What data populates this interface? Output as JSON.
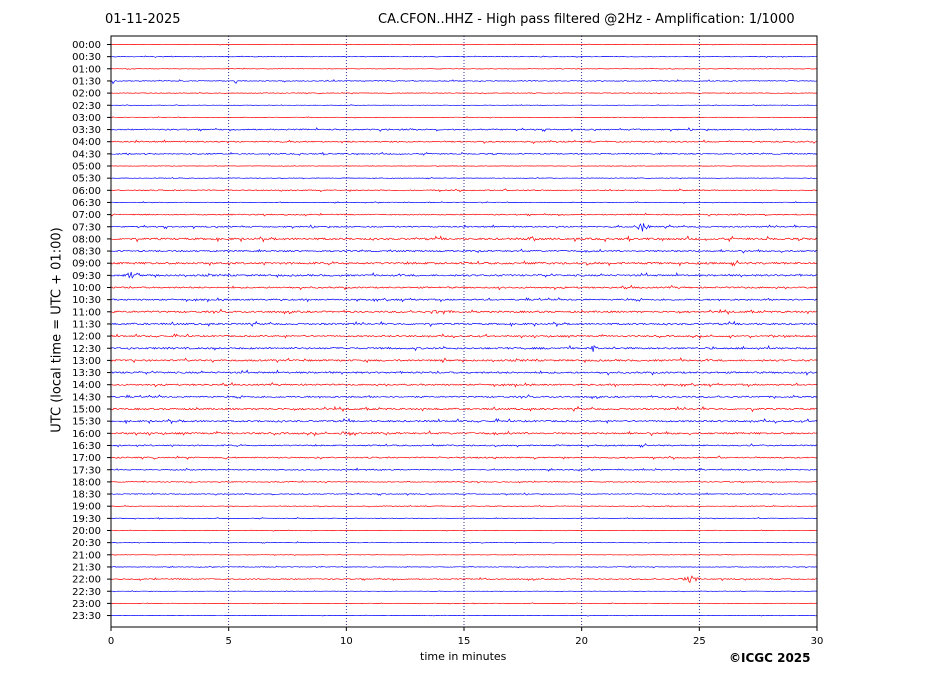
{
  "header": {
    "date": "01-11-2025",
    "title": "CA.CFON..HHZ - High pass filtered @2Hz - Amplification: 1/1000"
  },
  "footer": {
    "xlabel": "time in minutes",
    "copyright": "©ICGC 2025"
  },
  "chart_data": {
    "type": "line",
    "title": "CA.CFON..HHZ - High pass filtered @2Hz - Amplification: 1/1000",
    "xlabel": "time in minutes",
    "ylabel": "UTC (local time = UTC + 01:00)",
    "xlim": [
      0,
      30
    ],
    "x_ticks": [
      0,
      5,
      10,
      15,
      20,
      25,
      30
    ],
    "vertical_gridlines": [
      5,
      10,
      15,
      20,
      25
    ],
    "grid": "vertical dotted",
    "series_colors": [
      "#ff0000",
      "#0000ff"
    ],
    "rows": [
      "00:00",
      "00:30",
      "01:00",
      "01:30",
      "02:00",
      "02:30",
      "03:00",
      "03:30",
      "04:00",
      "04:30",
      "05:00",
      "05:30",
      "06:00",
      "06:30",
      "07:00",
      "07:30",
      "08:00",
      "08:30",
      "09:00",
      "09:30",
      "10:00",
      "10:30",
      "11:00",
      "11:30",
      "12:00",
      "12:30",
      "13:00",
      "13:30",
      "14:00",
      "14:30",
      "15:00",
      "15:30",
      "16:00",
      "16:30",
      "17:00",
      "17:30",
      "18:00",
      "18:30",
      "19:00",
      "19:30",
      "20:00",
      "20:30",
      "21:00",
      "21:30",
      "22:00",
      "22:30",
      "23:00",
      "23:30"
    ],
    "row_noise": [
      0.2,
      0.25,
      0.25,
      0.4,
      0.3,
      0.2,
      0.25,
      0.6,
      0.6,
      0.5,
      0.2,
      0.25,
      0.5,
      0.3,
      0.5,
      0.6,
      0.9,
      0.7,
      0.9,
      0.8,
      0.7,
      0.7,
      0.8,
      0.8,
      0.7,
      0.8,
      0.8,
      0.8,
      0.7,
      0.7,
      0.8,
      0.8,
      0.8,
      0.6,
      0.6,
      0.5,
      0.4,
      0.4,
      0.3,
      0.3,
      0.25,
      0.2,
      0.2,
      0.3,
      0.5,
      0.2,
      0.2,
      0.2
    ],
    "events": [
      {
        "row": "07:30",
        "minute": 22.6,
        "amplitude": 5,
        "width": 0.5
      },
      {
        "row": "09:30",
        "minute": 0.9,
        "amplitude": 4,
        "width": 0.4
      },
      {
        "row": "12:30",
        "minute": 20.5,
        "amplitude": 3,
        "width": 0.3
      },
      {
        "row": "01:30",
        "minute": 0.1,
        "amplitude": 4,
        "width": 0.05
      },
      {
        "row": "01:30",
        "minute": 5.3,
        "amplitude": 4,
        "width": 0.05
      },
      {
        "row": "20:30",
        "minute": 7.9,
        "amplitude": 4,
        "width": 0.05
      },
      {
        "row": "22:00",
        "minute": 24.6,
        "amplitude": 4,
        "width": 0.5
      },
      {
        "row": "22:00",
        "minute": 15.9,
        "amplitude": 3,
        "width": 0.05
      },
      {
        "row": "11:00",
        "minute": 14.0,
        "amplitude": 2,
        "width": 0.6
      },
      {
        "row": "08:00",
        "minute": 18.0,
        "amplitude": 2,
        "width": 0.5
      },
      {
        "row": "16:00",
        "minute": 10.0,
        "amplitude": 2,
        "width": 0.5
      }
    ]
  }
}
